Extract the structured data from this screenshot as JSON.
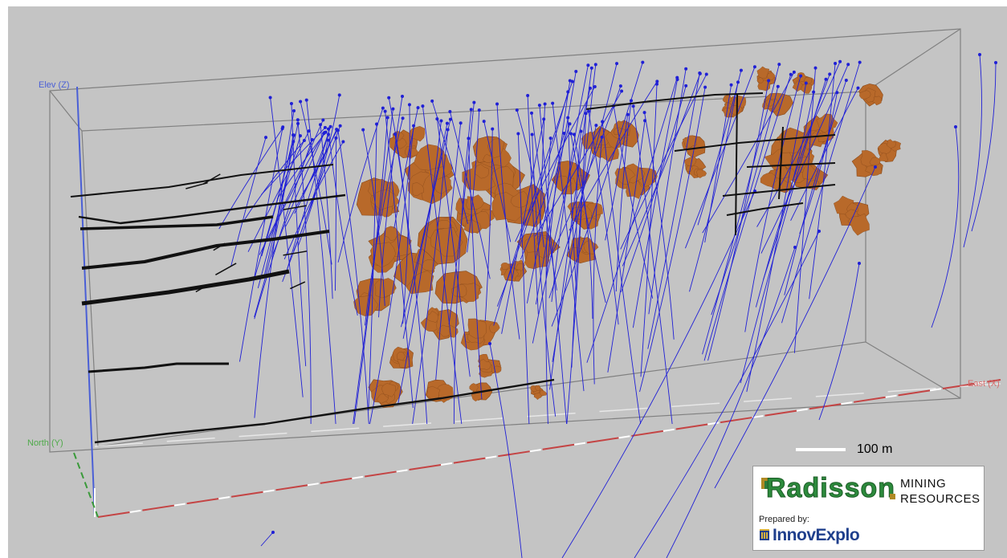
{
  "viewport": {
    "axes": {
      "elevation": "Elev (Z)",
      "north": "North (Y)",
      "east": "East (X)"
    },
    "colors": {
      "background": "#c4c4c4",
      "drillholes": "#1f1fd6",
      "underground_workings": "#111111",
      "mineralized_zones": "#b8692a",
      "box_edges": "#7a7a7a",
      "east_axis": "#c44444",
      "north_axis": "#3a9a3a",
      "elev_axis": "#4a5fd6"
    }
  },
  "scale_bar": {
    "label": "100 m"
  },
  "logo": {
    "company": "Radisson",
    "line1": "MINING",
    "line2": "RESOURCES",
    "prepared_by": "Prepared by:",
    "consultant": "InnovExplo"
  }
}
